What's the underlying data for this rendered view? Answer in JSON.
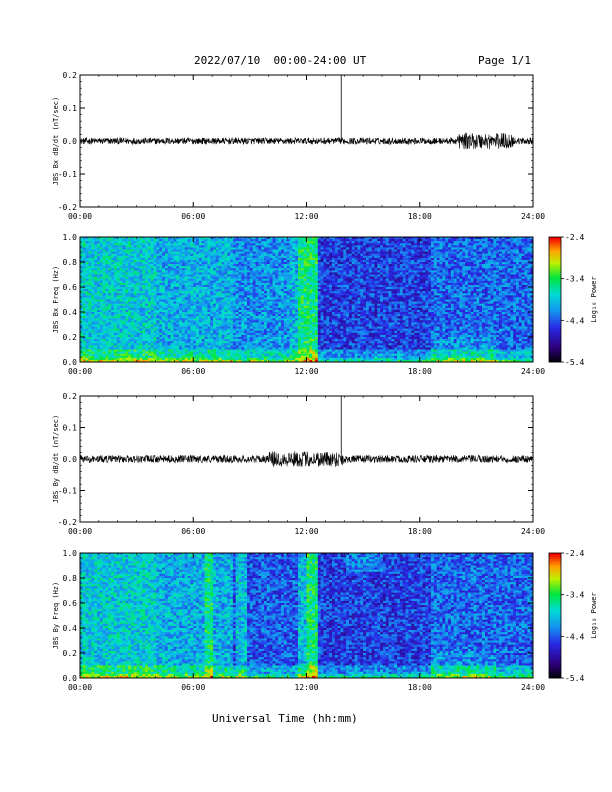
{
  "header": {
    "date_range": "2022/07/10  00:00-24:00 UT",
    "page": "Page 1/1"
  },
  "xlabel": "Universal Time (hh:mm)",
  "chart_data": [
    {
      "type": "line",
      "ylabel": "JBS Bx dB/dt (nT/sec)",
      "xlim": [
        0,
        24
      ],
      "ylim": [
        -0.2,
        0.2
      ],
      "x_ticks": [
        "00:00",
        "06:00",
        "12:00",
        "18:00",
        "24:00"
      ],
      "y_ticks": [
        "0.2",
        "0.1",
        "0.0",
        "-0.1",
        "-0.2"
      ],
      "series": [
        {
          "values": [
            [
              0,
              0.0
            ],
            [
              2,
              0.0
            ],
            [
              4,
              0.0
            ],
            [
              6,
              0.0
            ],
            [
              8,
              0.0
            ],
            [
              10,
              0.0
            ],
            [
              12,
              0.0
            ],
            [
              13.83,
              0.0
            ],
            [
              13.84,
              0.2
            ],
            [
              13.85,
              0.0
            ],
            [
              16,
              0.0
            ],
            [
              18,
              0.0
            ],
            [
              20,
              0.0
            ],
            [
              22,
              0.0
            ],
            [
              24,
              0.0
            ]
          ],
          "noise_amplitude": 0.01,
          "noise_peak": {
            "x": [
              20,
              23
            ],
            "amplitude": 0.025
          }
        }
      ]
    },
    {
      "type": "heatmap",
      "ylabel": "JBS Bx Freq (Hz)",
      "xlim": [
        0,
        24
      ],
      "ylim": [
        0,
        1.0
      ],
      "x_ticks": [
        "00:00",
        "06:00",
        "12:00",
        "18:00",
        "24:00"
      ],
      "y_ticks": [
        "1.0",
        "0.8",
        "0.6",
        "0.4",
        "0.2",
        "0.0"
      ],
      "colorbar": {
        "label": "Log₁₀ Power",
        "range": [
          -5.4,
          -2.4
        ],
        "ticks": [
          "-2.4",
          "-3.4",
          "-4.4",
          "-5.4"
        ]
      }
    },
    {
      "type": "line",
      "ylabel": "JBS By dB/dt (nT/sec)",
      "xlim": [
        0,
        24
      ],
      "ylim": [
        -0.2,
        0.2
      ],
      "x_ticks": [
        "00:00",
        "06:00",
        "12:00",
        "18:00",
        "24:00"
      ],
      "y_ticks": [
        "0.2",
        "0.1",
        "0.0",
        "-0.1",
        "-0.2"
      ],
      "series": [
        {
          "values": [
            [
              0,
              0.0
            ],
            [
              2,
              0.0
            ],
            [
              4,
              0.0
            ],
            [
              6,
              0.0
            ],
            [
              8,
              0.0
            ],
            [
              10,
              0.0
            ],
            [
              12,
              0.0
            ],
            [
              13.83,
              0.0
            ],
            [
              13.84,
              0.2
            ],
            [
              13.85,
              0.0
            ],
            [
              16,
              0.0
            ],
            [
              18,
              0.0
            ],
            [
              20,
              0.0
            ],
            [
              22,
              0.0
            ],
            [
              24,
              0.0
            ]
          ],
          "noise_amplitude": 0.012,
          "noise_peak": {
            "x": [
              10,
              14
            ],
            "amplitude": 0.025
          }
        }
      ]
    },
    {
      "type": "heatmap",
      "ylabel": "JBS By Freq (Hz)",
      "xlim": [
        0,
        24
      ],
      "ylim": [
        0,
        1.0
      ],
      "x_ticks": [
        "00:00",
        "06:00",
        "12:00",
        "18:00",
        "24:00"
      ],
      "y_ticks": [
        "1.0",
        "0.8",
        "0.6",
        "0.4",
        "0.2",
        "0.0"
      ],
      "colorbar": {
        "label": "Log₁₀ Power",
        "range": [
          -5.4,
          -2.4
        ],
        "ticks": [
          "-2.4",
          "-3.4",
          "-4.4",
          "-5.4"
        ]
      }
    }
  ]
}
